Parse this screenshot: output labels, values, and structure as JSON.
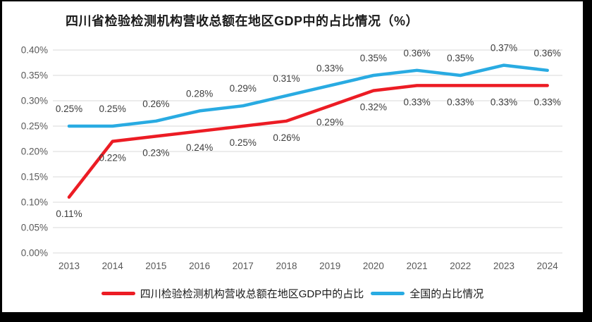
{
  "page": {
    "background": "#000000",
    "panel_background": "#ffffff"
  },
  "chart_data": {
    "type": "line",
    "title": "四川省检验检测机构营收总额在地区GDP中的占比情况（%）",
    "categories": [
      "2013",
      "2014",
      "2015",
      "2016",
      "2017",
      "2018",
      "2019",
      "2020",
      "2021",
      "2022",
      "2023",
      "2024"
    ],
    "series": [
      {
        "name": "四川检验检测机构营收总额在地区GDP中的占比",
        "color": "#EC1C24",
        "values": [
          0.11,
          0.22,
          0.23,
          0.24,
          0.25,
          0.26,
          0.29,
          0.32,
          0.33,
          0.33,
          0.33,
          0.33
        ],
        "data_labels": [
          "0.11%",
          "0.22%",
          "0.23%",
          "0.24%",
          "0.25%",
          "0.26%",
          "0.29%",
          "0.32%",
          "0.33%",
          "0.33%",
          "0.33%",
          "0.33%"
        ],
        "label_position": "below"
      },
      {
        "name": "全国的占比情况",
        "color": "#29ABE2",
        "values": [
          0.25,
          0.25,
          0.26,
          0.28,
          0.29,
          0.31,
          0.33,
          0.35,
          0.36,
          0.35,
          0.37,
          0.36
        ],
        "data_labels": [
          "0.25%",
          "0.25%",
          "0.26%",
          "0.28%",
          "0.29%",
          "0.31%",
          "0.33%",
          "0.35%",
          "0.36%",
          "0.35%",
          "0.37%",
          "0.36%"
        ],
        "label_position": "above"
      }
    ],
    "xlabel": "",
    "ylabel": "",
    "ylim": [
      0,
      0.4
    ],
    "ytick_step": 0.05,
    "y_tick_labels": [
      "0.00%",
      "0.05%",
      "0.10%",
      "0.15%",
      "0.20%",
      "0.25%",
      "0.30%",
      "0.35%",
      "0.40%"
    ],
    "grid": true,
    "legend_position": "bottom",
    "colors": {
      "grid": "#D9D9D9",
      "axis_text": "#595959",
      "data_label": "#3D3D3D",
      "title": "#1A1A1A",
      "legend_text": "#1A1A1A"
    }
  }
}
